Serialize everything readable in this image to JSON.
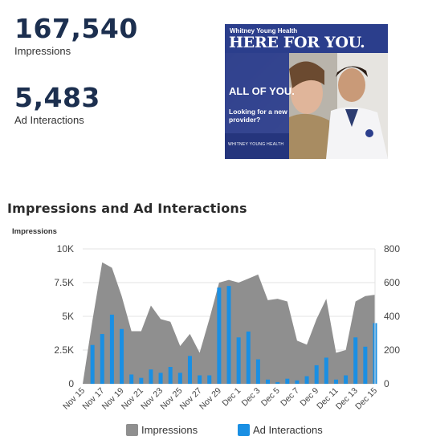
{
  "kpis": {
    "impressions": {
      "value": "167,540",
      "label": "Impressions"
    },
    "ad_interactions": {
      "value": "5,483",
      "label": "Ad Interactions"
    }
  },
  "ad_creative": {
    "brand": "Whitney Young Health",
    "headline": "HERE FOR YOU.",
    "subheadline": "ALL OF YOU.",
    "body": "Looking for a new provider?",
    "footer": "WHITNEY YOUNG HEALTH"
  },
  "colors": {
    "impressions": "#8f8f8f",
    "ad_interactions": "#1a8fe3",
    "kpi_text": "#1c2f4f",
    "ad_blue": "#2b3e8c"
  },
  "chart_data": {
    "type": "bar",
    "title": "Impressions and Ad Interactions",
    "ylabel": "Impressions",
    "x": [
      "Nov 15",
      "Nov 16",
      "Nov 17",
      "Nov 18",
      "Nov 19",
      "Nov 20",
      "Nov 21",
      "Nov 22",
      "Nov 23",
      "Nov 24",
      "Nov 25",
      "Nov 26",
      "Nov 27",
      "Nov 28",
      "Nov 29",
      "Nov 30",
      "Dec 1",
      "Dec 2",
      "Dec 3",
      "Dec 4",
      "Dec 5",
      "Dec 6",
      "Dec 7",
      "Dec 8",
      "Dec 9",
      "Dec 10",
      "Dec 11",
      "Dec 12",
      "Dec 13",
      "Dec 14",
      "Dec 15"
    ],
    "tick_labels": [
      "Nov 15",
      "Nov 17",
      "Nov 19",
      "Nov 21",
      "Nov 23",
      "Nov 25",
      "Nov 27",
      "Nov 29",
      "Dec 1",
      "Dec 3",
      "Dec 5",
      "Dec 7",
      "Dec 9",
      "Dec 11",
      "Dec 13",
      "Dec 15"
    ],
    "y_left": {
      "range": [
        0,
        10000
      ],
      "ticks": [
        0,
        2500,
        5000,
        7500,
        10000
      ],
      "tick_labels": [
        "0",
        "2.5K",
        "5K",
        "7.5K",
        "10K"
      ]
    },
    "y_right": {
      "range": [
        0,
        800
      ],
      "ticks": [
        0,
        200,
        400,
        600,
        800
      ],
      "tick_labels": [
        "0",
        "200",
        "400",
        "600",
        "800"
      ]
    },
    "grid": true,
    "legend": "bottom",
    "series": [
      {
        "name": "Impressions",
        "type": "area",
        "axis": "left",
        "values": [
          0,
          4700,
          9000,
          8600,
          6500,
          3900,
          3900,
          5800,
          4800,
          4600,
          2800,
          3700,
          2300,
          4800,
          7500,
          7700,
          7500,
          7800,
          8100,
          6200,
          6300,
          6100,
          3200,
          2900,
          4800,
          6300,
          2300,
          2500,
          6100,
          6500,
          6600
        ]
      },
      {
        "name": "Ad Interactions",
        "type": "bar",
        "axis": "right",
        "values": [
          0,
          230,
          295,
          410,
          325,
          55,
          35,
          85,
          65,
          100,
          65,
          165,
          50,
          50,
          570,
          580,
          275,
          310,
          145,
          25,
          10,
          30,
          20,
          45,
          110,
          155,
          25,
          50,
          275,
          220,
          360
        ]
      }
    ]
  }
}
